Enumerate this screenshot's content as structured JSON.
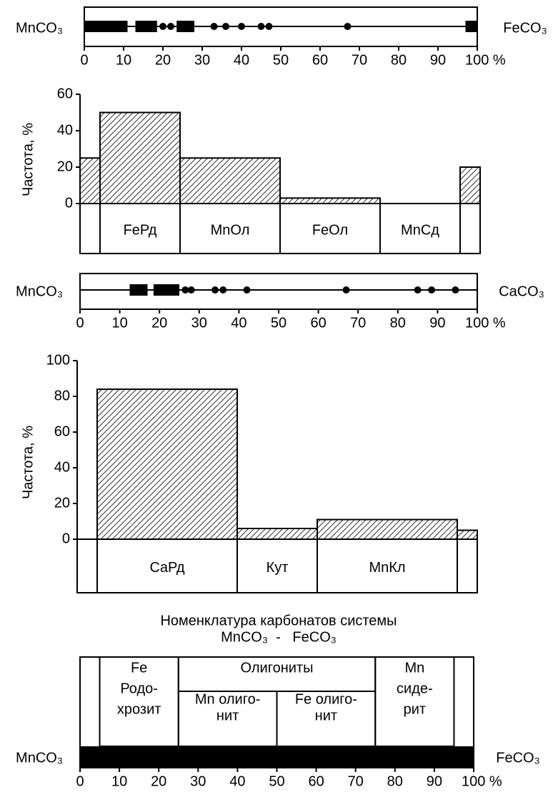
{
  "chart_data": [
    {
      "type": "strip",
      "left_label": "MnCO₃",
      "right_label": "FeCO₃",
      "xlim": [
        0,
        100
      ],
      "xticks": [
        0,
        10,
        20,
        30,
        40,
        50,
        60,
        70,
        80,
        90,
        {
          "value": 100,
          "label": "100 %"
        }
      ],
      "ranges": [
        [
          0,
          11
        ],
        [
          13,
          18.5
        ],
        [
          23.5,
          28
        ],
        [
          97,
          100
        ]
      ],
      "points": [
        20,
        22,
        33,
        36,
        40,
        45,
        47,
        67
      ]
    },
    {
      "type": "histogram",
      "ylabel": "Частота, %",
      "xlim": [
        0,
        100
      ],
      "ylim": [
        0,
        60
      ],
      "yticks": [
        0,
        20,
        40,
        60
      ],
      "bins": [
        0,
        5,
        25,
        50,
        75,
        95,
        100
      ],
      "counts": [
        25,
        50,
        25,
        3,
        0,
        20
      ],
      "bin_labels": [
        null,
        "FeРд",
        "MnОл",
        "FeОл",
        "MnСд",
        null
      ]
    },
    {
      "type": "strip",
      "left_label": "MnCO₃",
      "right_label": "CaCO₃",
      "xlim": [
        0,
        100
      ],
      "xticks": [
        0,
        10,
        20,
        30,
        40,
        50,
        60,
        70,
        80,
        90,
        {
          "value": 100,
          "label": "100 %"
        }
      ],
      "ranges": [
        [
          12.5,
          17
        ],
        [
          18.5,
          25
        ]
      ],
      "points": [
        26.5,
        28,
        34,
        36,
        42,
        67,
        85,
        88.5,
        94.5
      ]
    },
    {
      "type": "histogram",
      "ylabel": "Частота, %",
      "xlim": [
        0,
        100
      ],
      "ylim": [
        0,
        100
      ],
      "yticks": [
        0,
        20,
        40,
        60,
        80,
        100
      ],
      "bins": [
        0,
        5,
        40,
        60,
        95,
        100
      ],
      "counts": [
        0,
        84,
        6,
        11,
        5
      ],
      "bin_labels": [
        null,
        "CaРд",
        "Кут",
        "MnКл",
        null
      ]
    },
    {
      "type": "nomenclature",
      "title": "Номенклатура карбонатов системы",
      "subtitle": "MnCO₃  -   FeCO₃",
      "left_label": "MnCO₃",
      "right_label": "FeCO₃",
      "xlim": [
        0,
        100
      ],
      "xticks": [
        0,
        10,
        20,
        30,
        40,
        50,
        60,
        70,
        80,
        90,
        {
          "value": 100,
          "label": "100 %"
        }
      ],
      "boxes": [
        {
          "lines": [
            "Fe",
            "Родо-",
            "хрозит"
          ],
          "range": [
            5,
            25
          ]
        },
        {
          "lines": [
            "Олигониты"
          ],
          "range": [
            25,
            75
          ]
        },
        {
          "lines": [
            "Mn олиго-",
            "нит"
          ],
          "range": [
            25,
            50
          ]
        },
        {
          "lines": [
            "Fe олиго-",
            "нит"
          ],
          "range": [
            50,
            75
          ]
        },
        {
          "lines": [
            "Mn",
            "сиде-",
            "рит"
          ],
          "range": [
            75,
            95
          ]
        }
      ]
    }
  ]
}
